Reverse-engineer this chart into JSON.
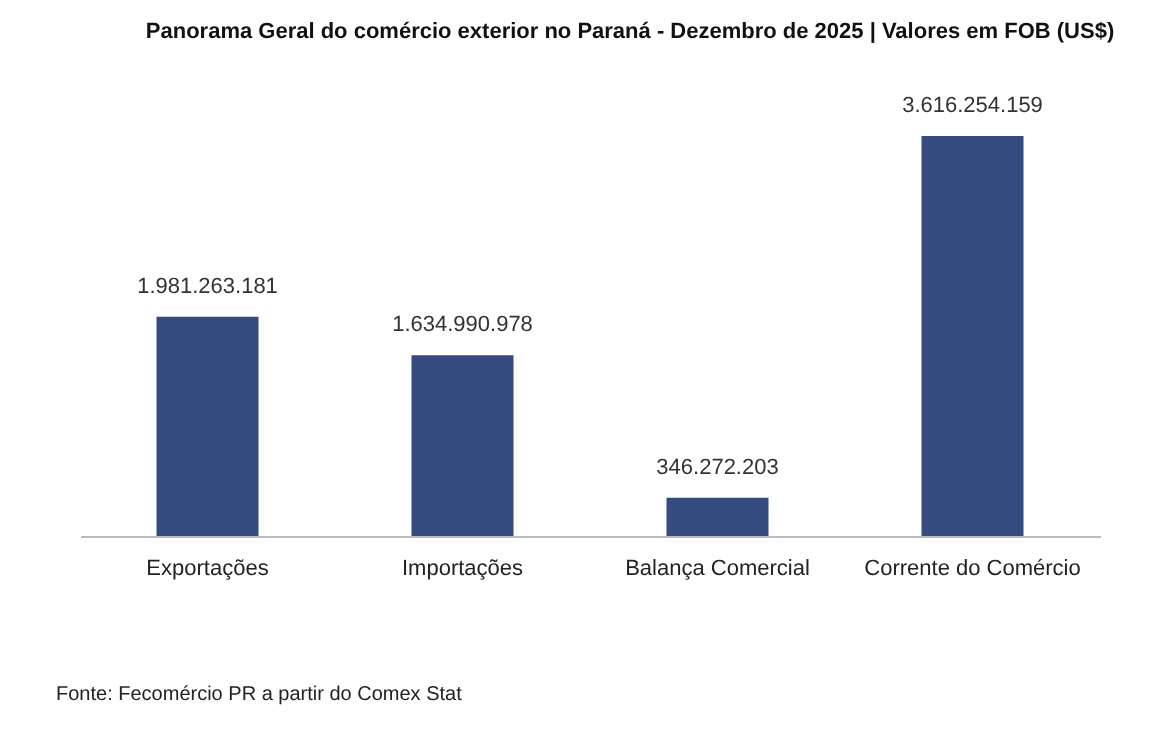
{
  "chart_data": {
    "type": "bar",
    "title": "Panorama Geral do comércio exterior no Paraná - Dezembro de 2025 | Valores em FOB (US$)",
    "categories": [
      "Exportações",
      "Importações",
      "Balança Comercial",
      "Corrente do Comércio"
    ],
    "values": [
      1981263181,
      1634990978,
      346272203,
      3616254159
    ],
    "value_labels": [
      "1.981.263.181",
      "1.634.990.978",
      "346.272.203",
      "3.616.254.159"
    ],
    "color": "#354a7f",
    "grid": false,
    "annotations": [
      "Fonte: Fecomércio PR a partir do Comex Stat"
    ]
  }
}
